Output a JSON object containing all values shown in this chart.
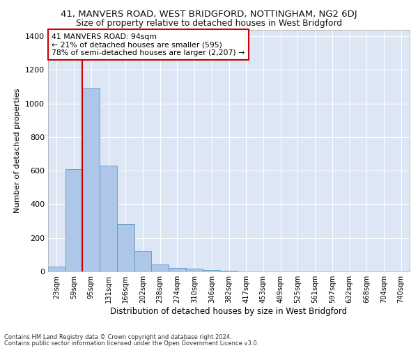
{
  "title_line1": "41, MANVERS ROAD, WEST BRIDGFORD, NOTTINGHAM, NG2 6DJ",
  "title_line2": "Size of property relative to detached houses in West Bridgford",
  "xlabel": "Distribution of detached houses by size in West Bridgford",
  "ylabel": "Number of detached properties",
  "bin_labels": [
    "23sqm",
    "59sqm",
    "95sqm",
    "131sqm",
    "166sqm",
    "202sqm",
    "238sqm",
    "274sqm",
    "310sqm",
    "346sqm",
    "382sqm",
    "417sqm",
    "453sqm",
    "489sqm",
    "525sqm",
    "561sqm",
    "597sqm",
    "632sqm",
    "668sqm",
    "704sqm",
    "740sqm"
  ],
  "bar_values": [
    30,
    610,
    1090,
    630,
    280,
    120,
    40,
    20,
    15,
    8,
    3,
    1,
    0,
    0,
    0,
    0,
    0,
    0,
    0,
    0,
    0
  ],
  "bar_color": "#aec6e8",
  "bar_edge_color": "#5a96c8",
  "annotation_line1": "41 MANVERS ROAD: 94sqm",
  "annotation_line2": "← 21% of detached houses are smaller (595)",
  "annotation_line3": "78% of semi-detached houses are larger (2,207) →",
  "vline_color": "#cc0000",
  "annotation_box_color": "#ffffff",
  "annotation_box_edgecolor": "#cc0000",
  "ylim": [
    0,
    1440
  ],
  "yticks": [
    0,
    200,
    400,
    600,
    800,
    1000,
    1200,
    1400
  ],
  "background_color": "#dce6f5",
  "footer_line1": "Contains HM Land Registry data © Crown copyright and database right 2024.",
  "footer_line2": "Contains public sector information licensed under the Open Government Licence v3.0."
}
